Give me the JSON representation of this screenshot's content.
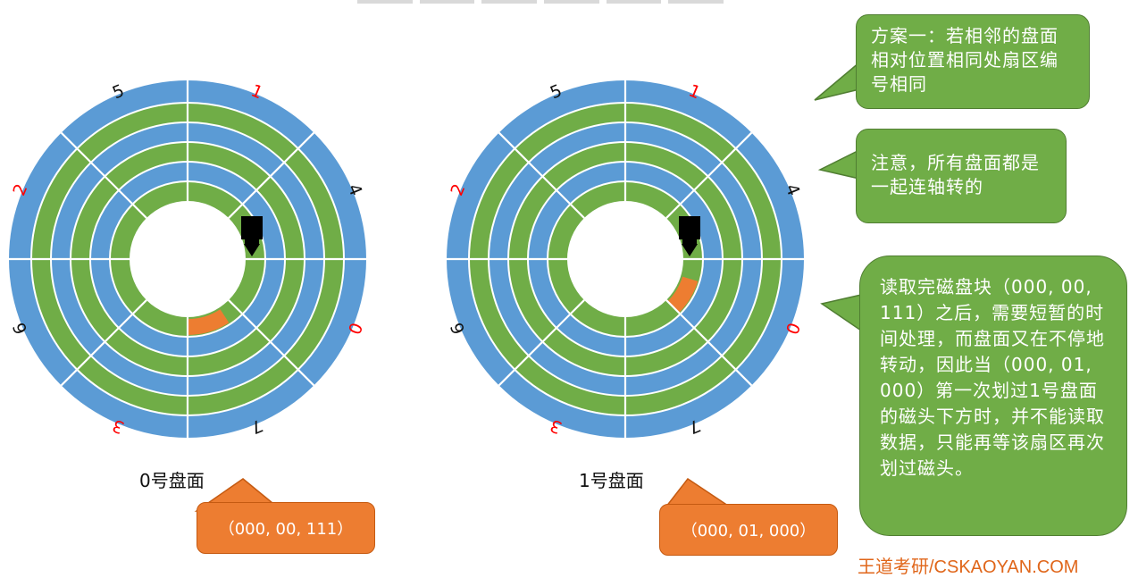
{
  "disks": [
    {
      "id": "surface-0",
      "label": "0号盘面",
      "address": "（000, 00, 111）",
      "sector_labels": [
        "0",
        "1",
        "5",
        "2",
        "6",
        "3",
        "7",
        "4"
      ],
      "highlighted_sector": "7",
      "highlighted_track": "innermost"
    },
    {
      "id": "surface-1",
      "label": "1号盘面",
      "address": "（000, 01, 000）",
      "sector_labels": [
        "0",
        "1",
        "5",
        "2",
        "6",
        "3",
        "7",
        "4"
      ],
      "highlighted_sector": "0",
      "highlighted_track": "innermost"
    }
  ],
  "notes": {
    "scheme": "方案一：若相邻的盘面相对位置相同处扇区编号相同",
    "attention": "注意，所有盘面都是一起连轴转的",
    "explanation": "读取完磁盘块（000, 00, 111）之后，需要短暂的时间处理，而盘面又在不停地转动，因此当（000, 01, 000）第一次划过1号盘面的磁头下方时，并不能读取数据，只能再等该扇区再次划过磁头。"
  },
  "watermark": "王道考研/CSKAOYAN.COM",
  "colors": {
    "track_blue": "#5b9bd5",
    "track_green": "#70ad47",
    "highlight": "#ed7d31",
    "sector_label_red": "#ff0000",
    "sector_label_black": "#111111",
    "bubble_green": "#70ad47",
    "bubble_orange": "#ed7d31"
  }
}
